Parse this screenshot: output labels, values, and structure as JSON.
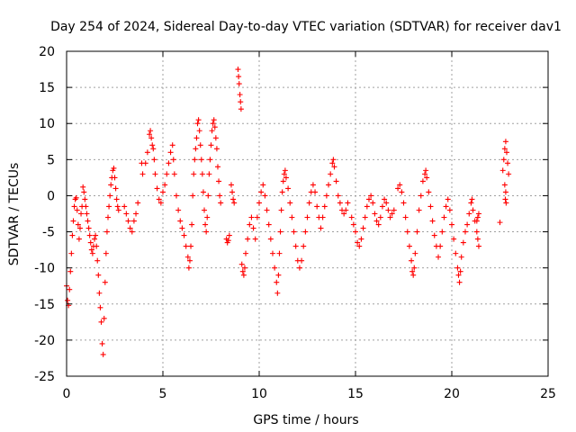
{
  "chart_data": {
    "type": "scatter",
    "title": "Day 254 of 2024, Sidereal Day-to-day VTEC variation (SDTVAR) for receiver dav1",
    "xlabel": "GPS time / hours",
    "ylabel": "SDTVAR / TECUs",
    "xlim": [
      0,
      25
    ],
    "ylim": [
      -25,
      20
    ],
    "x_ticks": [
      0,
      5,
      10,
      15,
      20,
      25
    ],
    "y_ticks": [
      -25,
      -20,
      -15,
      -10,
      -5,
      0,
      5,
      10,
      15,
      20
    ],
    "grid": true,
    "marker": "+",
    "colors": {
      "series": "#ff0000",
      "grid": "#a0a0a0",
      "axis": "#000000"
    },
    "series": [
      {
        "name": "SDTVAR",
        "points": [
          [
            0.0,
            -12.5
          ],
          [
            0.05,
            -14.5
          ],
          [
            0.1,
            -15.2
          ],
          [
            0.15,
            -13.0
          ],
          [
            0.2,
            -10.5
          ],
          [
            0.25,
            -8.0
          ],
          [
            0.3,
            -5.5
          ],
          [
            0.35,
            -3.5
          ],
          [
            0.4,
            -1.5
          ],
          [
            0.45,
            -0.5
          ],
          [
            0.5,
            -0.3
          ],
          [
            0.55,
            -2.0
          ],
          [
            0.6,
            -4.0
          ],
          [
            0.65,
            -6.0
          ],
          [
            0.7,
            -4.5
          ],
          [
            0.75,
            -2.5
          ],
          [
            0.8,
            -1.5
          ],
          [
            0.85,
            1.2
          ],
          [
            0.9,
            0.5
          ],
          [
            0.95,
            -0.5
          ],
          [
            1.0,
            -1.5
          ],
          [
            1.05,
            -2.5
          ],
          [
            1.1,
            -3.5
          ],
          [
            1.15,
            -4.5
          ],
          [
            1.2,
            -5.5
          ],
          [
            1.25,
            -6.5
          ],
          [
            1.3,
            -7.5
          ],
          [
            1.35,
            -8.0
          ],
          [
            1.4,
            -7.0
          ],
          [
            1.45,
            -6.0
          ],
          [
            1.5,
            -5.5
          ],
          [
            1.55,
            -7.0
          ],
          [
            1.6,
            -9.0
          ],
          [
            1.65,
            -11.0
          ],
          [
            1.7,
            -13.5
          ],
          [
            1.75,
            -15.5
          ],
          [
            1.8,
            -17.5
          ],
          [
            1.85,
            -20.5
          ],
          [
            1.9,
            -22.0
          ],
          [
            1.95,
            -17.0
          ],
          [
            2.0,
            -12.0
          ],
          [
            2.05,
            -8.0
          ],
          [
            2.1,
            -5.0
          ],
          [
            2.15,
            -3.0
          ],
          [
            2.2,
            -1.5
          ],
          [
            2.25,
            0.0
          ],
          [
            2.3,
            1.5
          ],
          [
            2.35,
            2.5
          ],
          [
            2.4,
            3.5
          ],
          [
            2.45,
            3.8
          ],
          [
            2.5,
            2.5
          ],
          [
            2.55,
            1.0
          ],
          [
            2.6,
            -0.5
          ],
          [
            2.65,
            -1.5
          ],
          [
            2.7,
            -2.0
          ],
          [
            3.0,
            -1.5
          ],
          [
            3.1,
            -2.5
          ],
          [
            3.2,
            -3.5
          ],
          [
            3.3,
            -4.5
          ],
          [
            3.4,
            -5.0
          ],
          [
            3.5,
            -3.5
          ],
          [
            3.6,
            -2.5
          ],
          [
            3.7,
            -1.0
          ],
          [
            3.9,
            4.5
          ],
          [
            3.95,
            3.0
          ],
          [
            4.1,
            4.5
          ],
          [
            4.2,
            6.0
          ],
          [
            4.3,
            8.5
          ],
          [
            4.35,
            9.0
          ],
          [
            4.4,
            8.0
          ],
          [
            4.45,
            7.0
          ],
          [
            4.5,
            6.5
          ],
          [
            4.55,
            5.0
          ],
          [
            4.6,
            3.0
          ],
          [
            4.7,
            1.0
          ],
          [
            4.8,
            -0.5
          ],
          [
            4.9,
            -1.0
          ],
          [
            5.0,
            0.5
          ],
          [
            5.1,
            1.5
          ],
          [
            5.2,
            3.0
          ],
          [
            5.3,
            4.5
          ],
          [
            5.4,
            6.0
          ],
          [
            5.5,
            7.0
          ],
          [
            5.55,
            5.0
          ],
          [
            5.6,
            3.0
          ],
          [
            5.7,
            0.0
          ],
          [
            5.8,
            -2.0
          ],
          [
            5.9,
            -3.5
          ],
          [
            6.0,
            -4.5
          ],
          [
            6.1,
            -5.5
          ],
          [
            6.2,
            -7.0
          ],
          [
            6.3,
            -8.5
          ],
          [
            6.35,
            -10.0
          ],
          [
            6.4,
            -9.0
          ],
          [
            6.45,
            -7.0
          ],
          [
            6.5,
            -4.0
          ],
          [
            6.55,
            0.0
          ],
          [
            6.6,
            3.0
          ],
          [
            6.65,
            5.0
          ],
          [
            6.7,
            6.5
          ],
          [
            6.75,
            8.0
          ],
          [
            6.8,
            10.0
          ],
          [
            6.85,
            10.5
          ],
          [
            6.9,
            9.0
          ],
          [
            6.95,
            7.0
          ],
          [
            7.0,
            5.0
          ],
          [
            7.05,
            3.0
          ],
          [
            7.1,
            0.5
          ],
          [
            7.15,
            -2.0
          ],
          [
            7.2,
            -4.0
          ],
          [
            7.25,
            -5.0
          ],
          [
            7.3,
            -3.0
          ],
          [
            7.35,
            0.0
          ],
          [
            7.4,
            3.0
          ],
          [
            7.45,
            5.0
          ],
          [
            7.5,
            7.0
          ],
          [
            7.55,
            9.0
          ],
          [
            7.6,
            10.0
          ],
          [
            7.65,
            10.5
          ],
          [
            7.7,
            9.5
          ],
          [
            7.75,
            8.0
          ],
          [
            7.8,
            6.5
          ],
          [
            7.85,
            4.0
          ],
          [
            7.9,
            2.0
          ],
          [
            7.95,
            0.0
          ],
          [
            8.0,
            -1.0
          ],
          [
            8.3,
            -6.0
          ],
          [
            8.35,
            -6.5
          ],
          [
            8.4,
            -6.2
          ],
          [
            8.45,
            -5.5
          ],
          [
            8.55,
            1.5
          ],
          [
            8.6,
            0.5
          ],
          [
            8.65,
            -0.5
          ],
          [
            8.7,
            -1.0
          ],
          [
            8.9,
            17.5
          ],
          [
            8.93,
            16.5
          ],
          [
            8.96,
            15.5
          ],
          [
            9.0,
            14.0
          ],
          [
            9.03,
            13.0
          ],
          [
            9.06,
            12.0
          ],
          [
            9.1,
            -9.5
          ],
          [
            9.15,
            -10.5
          ],
          [
            9.2,
            -11.0
          ],
          [
            9.25,
            -10.0
          ],
          [
            9.3,
            -8.0
          ],
          [
            9.4,
            -6.0
          ],
          [
            9.5,
            -4.0
          ],
          [
            9.6,
            -3.0
          ],
          [
            9.7,
            -4.5
          ],
          [
            9.8,
            -6.0
          ],
          [
            9.9,
            -3.0
          ],
          [
            10.0,
            -1.0
          ],
          [
            10.1,
            0.5
          ],
          [
            10.2,
            1.5
          ],
          [
            10.3,
            0.0
          ],
          [
            10.4,
            -2.0
          ],
          [
            10.5,
            -4.0
          ],
          [
            10.6,
            -6.0
          ],
          [
            10.7,
            -8.0
          ],
          [
            10.8,
            -10.0
          ],
          [
            10.9,
            -12.0
          ],
          [
            10.95,
            -13.5
          ],
          [
            11.0,
            -11.0
          ],
          [
            11.05,
            -8.0
          ],
          [
            11.1,
            -5.0
          ],
          [
            11.15,
            -2.0
          ],
          [
            11.2,
            0.5
          ],
          [
            11.25,
            2.0
          ],
          [
            11.3,
            3.0
          ],
          [
            11.35,
            3.5
          ],
          [
            11.4,
            2.5
          ],
          [
            11.5,
            1.0
          ],
          [
            11.6,
            -1.0
          ],
          [
            11.7,
            -3.0
          ],
          [
            11.8,
            -5.0
          ],
          [
            11.9,
            -7.0
          ],
          [
            12.0,
            -9.0
          ],
          [
            12.1,
            -10.0
          ],
          [
            12.2,
            -9.0
          ],
          [
            12.3,
            -7.0
          ],
          [
            12.4,
            -5.0
          ],
          [
            12.5,
            -3.0
          ],
          [
            12.6,
            -1.0
          ],
          [
            12.7,
            0.5
          ],
          [
            12.8,
            1.5
          ],
          [
            12.9,
            0.5
          ],
          [
            13.0,
            -1.5
          ],
          [
            13.1,
            -3.0
          ],
          [
            13.2,
            -4.5
          ],
          [
            13.3,
            -3.0
          ],
          [
            13.4,
            -1.5
          ],
          [
            13.5,
            0.0
          ],
          [
            13.6,
            1.5
          ],
          [
            13.7,
            3.0
          ],
          [
            13.8,
            4.5
          ],
          [
            13.85,
            5.0
          ],
          [
            13.9,
            4.0
          ],
          [
            14.0,
            2.0
          ],
          [
            14.1,
            0.0
          ],
          [
            14.2,
            -1.0
          ],
          [
            14.3,
            -2.0
          ],
          [
            14.4,
            -2.5
          ],
          [
            14.5,
            -2.0
          ],
          [
            14.6,
            -1.0
          ],
          [
            14.8,
            -3.0
          ],
          [
            14.9,
            -4.0
          ],
          [
            15.0,
            -5.0
          ],
          [
            15.1,
            -6.5
          ],
          [
            15.2,
            -7.0
          ],
          [
            15.3,
            -6.0
          ],
          [
            15.4,
            -4.5
          ],
          [
            15.5,
            -3.0
          ],
          [
            15.6,
            -1.5
          ],
          [
            15.7,
            -0.5
          ],
          [
            15.8,
            0.0
          ],
          [
            15.9,
            -1.0
          ],
          [
            16.0,
            -2.5
          ],
          [
            16.1,
            -3.5
          ],
          [
            16.2,
            -4.0
          ],
          [
            16.3,
            -3.0
          ],
          [
            16.4,
            -1.5
          ],
          [
            16.5,
            -0.5
          ],
          [
            16.6,
            -1.0
          ],
          [
            16.7,
            -2.0
          ],
          [
            16.8,
            -3.0
          ],
          [
            16.9,
            -2.5
          ],
          [
            17.0,
            -2.0
          ],
          [
            17.2,
            1.0
          ],
          [
            17.3,
            1.5
          ],
          [
            17.4,
            0.5
          ],
          [
            17.5,
            -1.0
          ],
          [
            17.6,
            -3.0
          ],
          [
            17.7,
            -5.0
          ],
          [
            17.8,
            -7.0
          ],
          [
            17.9,
            -9.0
          ],
          [
            17.95,
            -10.5
          ],
          [
            18.0,
            -11.0
          ],
          [
            18.05,
            -10.0
          ],
          [
            18.1,
            -8.0
          ],
          [
            18.2,
            -5.0
          ],
          [
            18.3,
            -2.0
          ],
          [
            18.4,
            0.0
          ],
          [
            18.5,
            2.0
          ],
          [
            18.6,
            3.0
          ],
          [
            18.65,
            3.5
          ],
          [
            18.7,
            2.5
          ],
          [
            18.8,
            0.5
          ],
          [
            18.9,
            -1.5
          ],
          [
            19.0,
            -3.5
          ],
          [
            19.1,
            -5.5
          ],
          [
            19.2,
            -7.0
          ],
          [
            19.3,
            -8.5
          ],
          [
            19.4,
            -7.0
          ],
          [
            19.5,
            -5.0
          ],
          [
            19.6,
            -3.0
          ],
          [
            19.7,
            -1.5
          ],
          [
            19.8,
            -0.5
          ],
          [
            19.9,
            -2.0
          ],
          [
            20.0,
            -4.0
          ],
          [
            20.1,
            -6.0
          ],
          [
            20.2,
            -8.0
          ],
          [
            20.3,
            -10.0
          ],
          [
            20.35,
            -11.0
          ],
          [
            20.4,
            -12.0
          ],
          [
            20.45,
            -10.5
          ],
          [
            20.5,
            -8.5
          ],
          [
            20.6,
            -6.5
          ],
          [
            20.7,
            -5.0
          ],
          [
            20.8,
            -4.0
          ],
          [
            20.9,
            -2.5
          ],
          [
            21.0,
            -1.0
          ],
          [
            21.05,
            -0.5
          ],
          [
            21.1,
            -2.0
          ],
          [
            21.2,
            -3.5
          ],
          [
            21.3,
            -5.0
          ],
          [
            21.35,
            -6.0
          ],
          [
            21.4,
            -7.0
          ],
          [
            21.3,
            -3.5
          ],
          [
            21.35,
            -3.0
          ],
          [
            21.4,
            -2.5
          ],
          [
            22.5,
            -3.7
          ],
          [
            22.65,
            3.5
          ],
          [
            22.7,
            5.0
          ],
          [
            22.75,
            6.5
          ],
          [
            22.8,
            7.5
          ],
          [
            22.85,
            6.0
          ],
          [
            22.9,
            4.5
          ],
          [
            22.95,
            3.0
          ],
          [
            22.75,
            1.5
          ],
          [
            22.8,
            0.5
          ],
          [
            22.78,
            -0.5
          ],
          [
            22.82,
            -1.0
          ]
        ]
      }
    ]
  }
}
